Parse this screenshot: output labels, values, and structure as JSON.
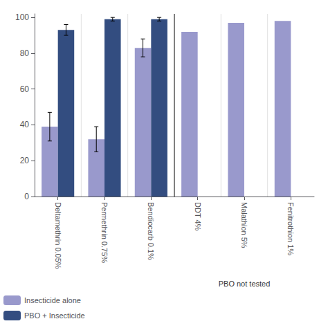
{
  "chart_data": {
    "type": "bar",
    "categories": [
      "Deltamethrin 0.05%",
      "Permethrin 0.75%",
      "Bendiocarb 0.1%",
      "DDT 4%",
      "Malathion 5%",
      "Fenitrothion 1%"
    ],
    "series": [
      {
        "name": "Insecticide alone",
        "color": "#9999CC",
        "values": [
          39,
          32,
          83,
          92,
          97,
          98
        ],
        "errors": [
          8,
          7,
          5,
          0,
          0,
          0
        ]
      },
      {
        "name": "PBO + Insecticide",
        "color": "#334d80",
        "values": [
          93,
          99,
          99,
          null,
          null,
          null
        ],
        "errors": [
          3,
          1,
          1,
          null,
          null,
          null
        ]
      }
    ],
    "annotation": "PBO not tested",
    "ylim": [
      0,
      102
    ],
    "yticks": [
      0,
      20,
      40,
      60,
      80,
      100
    ],
    "grid": false,
    "legend": "bottom left"
  }
}
